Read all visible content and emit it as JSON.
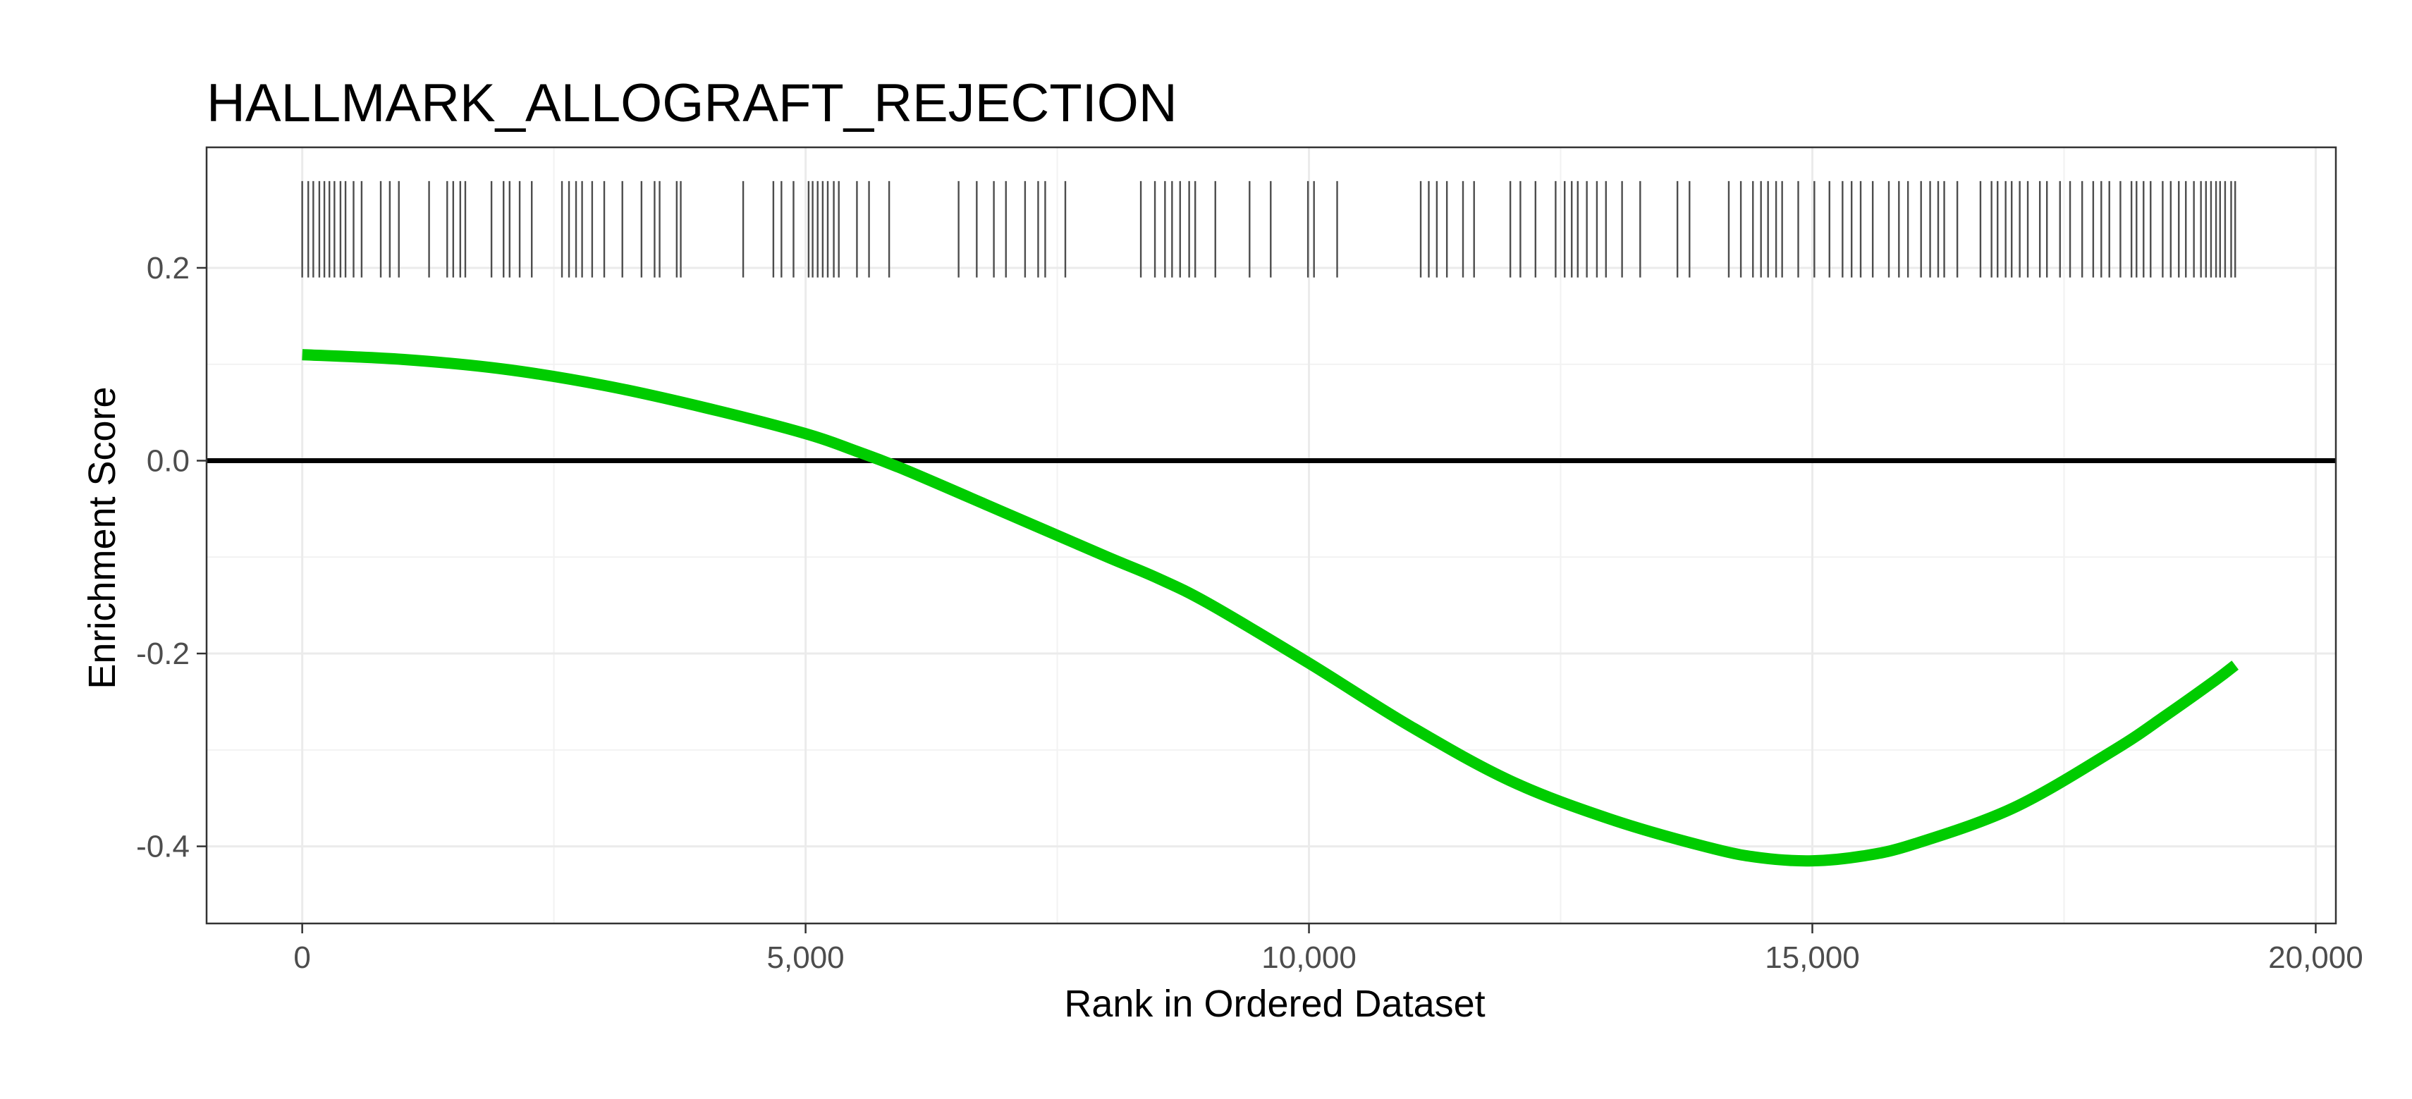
{
  "chart_data": {
    "type": "line",
    "title": "HALLMARK_ALLOGRAFT_REJECTION",
    "xlabel": "Rank in Ordered Dataset",
    "ylabel": "Enrichment Score",
    "xlim": [
      -950,
      20200
    ],
    "ylim": [
      -0.48,
      0.325
    ],
    "x_ticks": [
      0,
      5000,
      10000,
      15000,
      20000
    ],
    "x_tick_labels": [
      "0",
      "5,000",
      "10,000",
      "15,000",
      "20,000"
    ],
    "y_ticks": [
      -0.4,
      -0.2,
      0.0,
      0.2
    ],
    "y_tick_labels": [
      "-0.4",
      "-0.2",
      "0.0",
      "0.2"
    ],
    "grid": true,
    "theme": "bw",
    "zero_line": 0.0,
    "series": [
      {
        "color": "#00cc00",
        "x": [
          0,
          1000,
          2000,
          3000,
          4000,
          5000,
          5500,
          6000,
          7000,
          8000,
          8500,
          9000,
          10000,
          11000,
          12000,
          13000,
          14000,
          14500,
          15000,
          15500,
          16000,
          17000,
          18000,
          18500,
          19000,
          19200
        ],
        "y": [
          0.11,
          0.105,
          0.095,
          0.078,
          0.055,
          0.028,
          0.01,
          -0.01,
          -0.055,
          -0.1,
          -0.122,
          -0.148,
          -0.21,
          -0.275,
          -0.332,
          -0.372,
          -0.402,
          -0.412,
          -0.415,
          -0.41,
          -0.398,
          -0.36,
          -0.3,
          -0.265,
          -0.228,
          -0.212
        ]
      }
    ],
    "rug": {
      "color": "#4d4d4d",
      "y_range": [
        0.19,
        0.29
      ],
      "x": [
        0,
        60,
        110,
        170,
        220,
        270,
        320,
        380,
        430,
        510,
        590,
        780,
        870,
        960,
        1260,
        1440,
        1500,
        1570,
        1620,
        1880,
        2000,
        2060,
        2160,
        2280,
        2580,
        2650,
        2720,
        2780,
        2880,
        3000,
        3180,
        3370,
        3500,
        3550,
        3720,
        3760,
        4380,
        4680,
        4760,
        4880,
        5030,
        5070,
        5120,
        5170,
        5220,
        5280,
        5330,
        5510,
        5630,
        5830,
        6520,
        6700,
        6870,
        6990,
        7180,
        7310,
        7380,
        7580,
        8330,
        8470,
        8570,
        8640,
        8720,
        8810,
        8870,
        9070,
        9410,
        9620,
        9990,
        10050,
        10280,
        11110,
        11190,
        11270,
        11370,
        11530,
        11640,
        12000,
        12100,
        12250,
        12450,
        12540,
        12610,
        12670,
        12760,
        12860,
        12950,
        13110,
        13290,
        13660,
        13780,
        14170,
        14290,
        14410,
        14490,
        14560,
        14640,
        14700,
        14860,
        15020,
        15170,
        15300,
        15390,
        15480,
        15600,
        15760,
        15860,
        15950,
        16080,
        16170,
        16250,
        16310,
        16440,
        16670,
        16780,
        16840,
        16920,
        16980,
        17060,
        17140,
        17260,
        17330,
        17460,
        17560,
        17680,
        17790,
        17870,
        17950,
        18060,
        18170,
        18220,
        18290,
        18360,
        18480,
        18560,
        18640,
        18710,
        18790,
        18860,
        18910,
        18960,
        19010,
        19050,
        19100,
        19160,
        19200
      ]
    }
  }
}
